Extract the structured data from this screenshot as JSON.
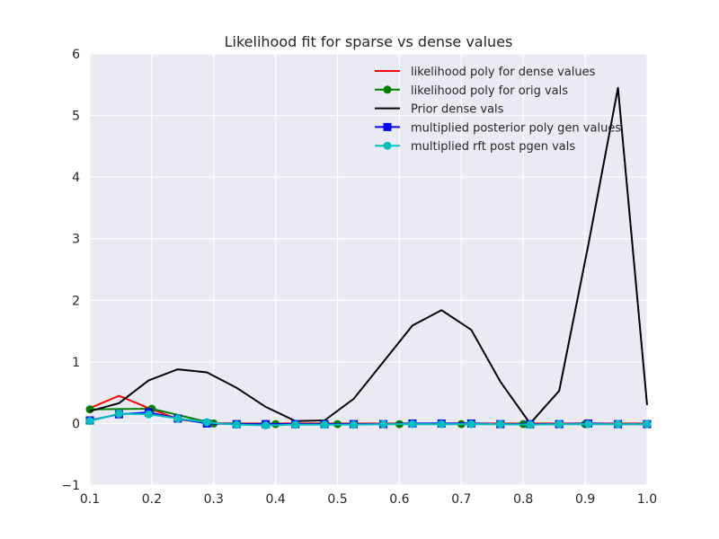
{
  "chart_data": {
    "type": "line",
    "title": "Likelihood fit for sparse vs dense values",
    "xlabel": "",
    "ylabel": "",
    "xlim": [
      0.1,
      1.0
    ],
    "ylim": [
      -1,
      6
    ],
    "xticks": [
      "0.1",
      "0.2",
      "0.3",
      "0.4",
      "0.5",
      "0.6",
      "0.7",
      "0.8",
      "0.9",
      "1.0"
    ],
    "yticks": [
      "−1",
      "0",
      "1",
      "2",
      "3",
      "4",
      "5",
      "6"
    ],
    "grid": true,
    "legend_position": "top-right",
    "series": [
      {
        "name": "likelihood poly for dense values",
        "color": "#ff0000",
        "marker": "none",
        "x": [
          0.1,
          0.147,
          0.195,
          0.242,
          0.289,
          0.337,
          0.384,
          0.432,
          0.479,
          0.526,
          0.574,
          0.621,
          0.668,
          0.716,
          0.763,
          0.811,
          0.858,
          0.905,
          0.953,
          1.0
        ],
        "y": [
          0.25,
          0.45,
          0.25,
          0.07,
          0.01,
          0.0,
          0.0,
          0.0,
          0.0,
          0.0,
          0.0,
          0.0,
          0.0,
          0.0,
          0.0,
          0.0,
          0.0,
          0.0,
          0.0,
          0.0
        ]
      },
      {
        "name": "likelihood poly for orig vals",
        "color": "#008000",
        "marker": "circle",
        "x": [
          0.1,
          0.2,
          0.3,
          0.4,
          0.5,
          0.6,
          0.7,
          0.8,
          0.9,
          1.0
        ],
        "y": [
          0.23,
          0.24,
          0.0,
          -0.01,
          -0.01,
          -0.01,
          -0.01,
          -0.01,
          -0.01,
          -0.01
        ]
      },
      {
        "name": "Prior dense vals",
        "color": "#000000",
        "marker": "none",
        "x": [
          0.1,
          0.147,
          0.195,
          0.242,
          0.289,
          0.337,
          0.384,
          0.432,
          0.479,
          0.526,
          0.574,
          0.621,
          0.668,
          0.716,
          0.763,
          0.811,
          0.858,
          0.905,
          0.953,
          1.0
        ],
        "y": [
          0.2,
          0.33,
          0.7,
          0.88,
          0.83,
          0.58,
          0.27,
          0.04,
          0.05,
          0.4,
          1.0,
          1.59,
          1.84,
          1.52,
          0.68,
          0.0,
          0.53,
          2.9,
          5.45,
          0.3
        ]
      },
      {
        "name": "multiplied posterior poly gen values",
        "color": "#0000ff",
        "marker": "square",
        "x": [
          0.1,
          0.147,
          0.195,
          0.242,
          0.289,
          0.337,
          0.384,
          0.432,
          0.479,
          0.526,
          0.574,
          0.621,
          0.668,
          0.716,
          0.763,
          0.811,
          0.858,
          0.905,
          0.953,
          1.0
        ],
        "y": [
          0.05,
          0.15,
          0.18,
          0.08,
          0.0,
          -0.01,
          -0.01,
          -0.01,
          -0.01,
          -0.01,
          -0.01,
          0.0,
          0.0,
          0.0,
          -0.01,
          -0.01,
          -0.01,
          0.0,
          -0.01,
          -0.01
        ]
      },
      {
        "name": "multiplied rft post pgen vals",
        "color": "#00bfbf",
        "marker": "circle",
        "x": [
          0.1,
          0.147,
          0.195,
          0.242,
          0.289,
          0.337,
          0.384,
          0.432,
          0.479,
          0.526,
          0.574,
          0.621,
          0.668,
          0.716,
          0.763,
          0.811,
          0.858,
          0.905,
          0.953,
          1.0
        ],
        "y": [
          0.04,
          0.16,
          0.15,
          0.08,
          0.02,
          -0.02,
          -0.03,
          -0.02,
          -0.02,
          -0.02,
          -0.01,
          -0.01,
          -0.01,
          -0.01,
          -0.01,
          -0.02,
          -0.01,
          -0.01,
          -0.01,
          -0.01
        ]
      }
    ]
  }
}
